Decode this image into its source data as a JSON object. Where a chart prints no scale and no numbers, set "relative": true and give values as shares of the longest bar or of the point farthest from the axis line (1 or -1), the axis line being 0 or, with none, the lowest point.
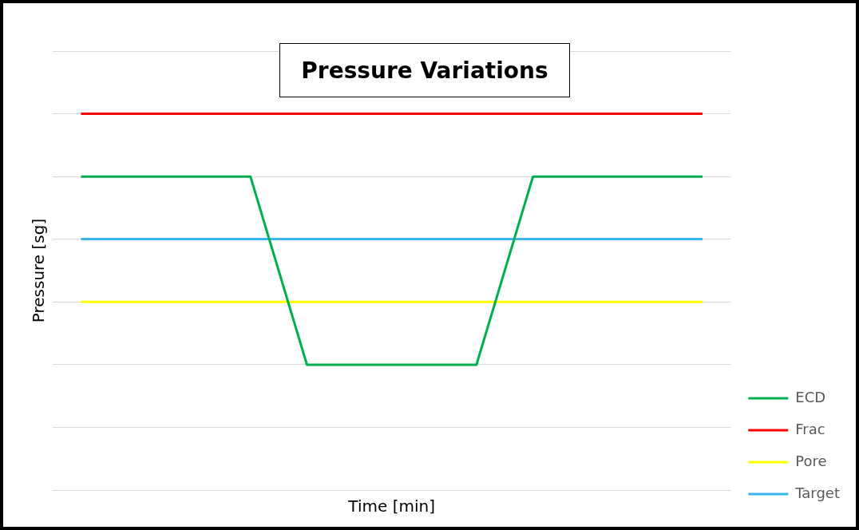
{
  "chart_data": {
    "type": "line",
    "title": "Pressure Variations",
    "xlabel": "Time [min]",
    "ylabel": "Pressure [sg]",
    "relative": true,
    "grid": "y",
    "legend": "bottom right",
    "marker": "none",
    "line_style": "solid",
    "categories": [
      null,
      null,
      null,
      null,
      null,
      null,
      null,
      null,
      null,
      null,
      null,
      null
    ],
    "series": [
      {
        "name": "ECD",
        "color": "#00b050",
        "values": [
          0.833,
          0.833,
          0.833,
          0.833,
          0.333,
          0.333,
          0.333,
          0.333,
          0.833,
          0.833,
          0.833,
          0.833
        ]
      },
      {
        "name": "Frac",
        "color": "#ff0000",
        "values": [
          1,
          1,
          1,
          1,
          1,
          1,
          1,
          1,
          1,
          1,
          1,
          1
        ]
      },
      {
        "name": "Pore",
        "color": "#ffff00",
        "values": [
          0.5,
          0.5,
          0.5,
          0.5,
          0.5,
          0.5,
          0.5,
          0.5,
          0.5,
          0.5,
          0.5,
          0.5
        ]
      },
      {
        "name": "Target",
        "color": "#3cb4f0",
        "values": [
          0.667,
          0.667,
          0.667,
          0.667,
          0.667,
          0.667,
          0.667,
          0.667,
          0.667,
          0.667,
          0.667,
          0.667
        ]
      }
    ]
  }
}
